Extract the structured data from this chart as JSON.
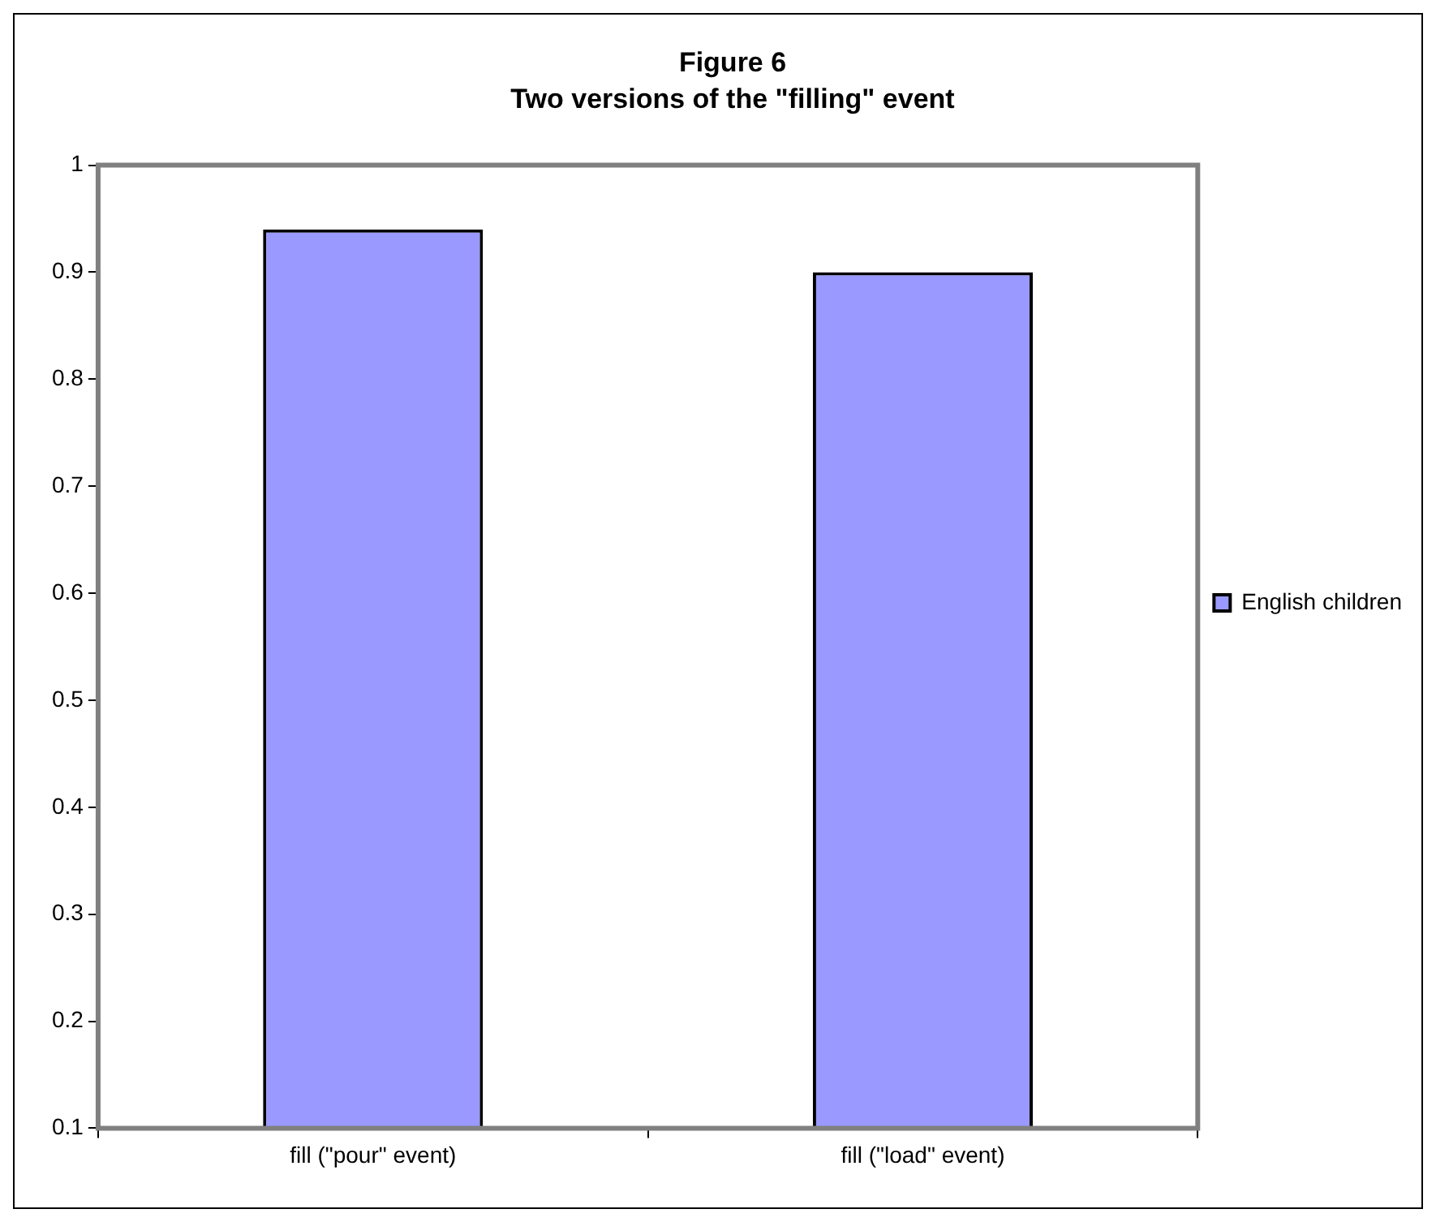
{
  "chart_data": {
    "type": "bar",
    "title": "Figure 6",
    "subtitle": "Two versions of the \"filling\" event",
    "categories": [
      "fill (\"pour\" event)",
      "fill (\"load\" event)"
    ],
    "series": [
      {
        "name": "English children",
        "color": "#9999ff",
        "values": [
          0.94,
          0.9
        ]
      }
    ],
    "ylim": [
      0.1,
      1
    ],
    "yticks": [
      0.1,
      0.2,
      0.3,
      0.4,
      0.5,
      0.6,
      0.7,
      0.8,
      0.9,
      1
    ],
    "grid": false,
    "legend": "right"
  }
}
